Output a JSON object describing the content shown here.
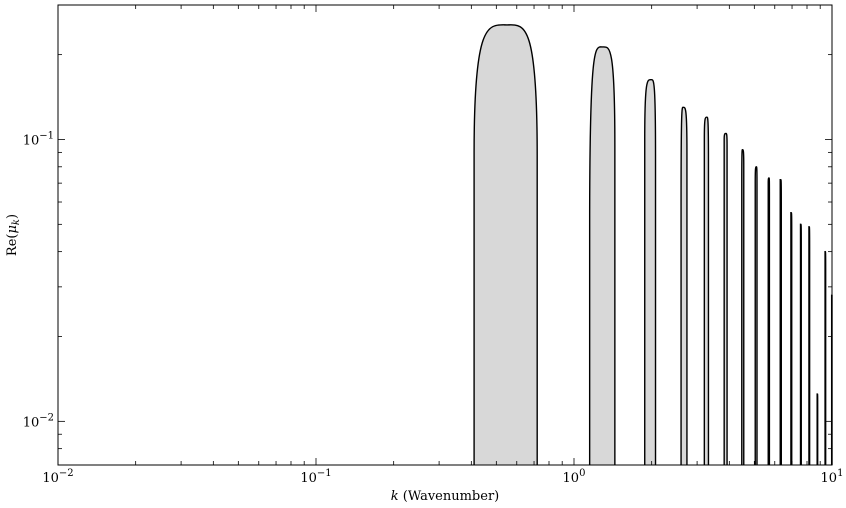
{
  "chart_data": {
    "type": "area",
    "title": "",
    "xlabel": "k (Wavenumber)",
    "xlabel_var": "k",
    "xlabel_rest": " (Wavenumber)",
    "ylabel": "Re(μk)",
    "ylabel_prefix": "Re(",
    "ylabel_var": "μ",
    "ylabel_sub": "k",
    "ylabel_suffix": ")",
    "xscale": "log",
    "yscale": "log",
    "xlim": [
      0.01,
      10
    ],
    "ylim": [
      0.007,
      0.3
    ],
    "grid": false,
    "legend": "none",
    "fill_color": "#d8d8d8",
    "line_color": "#000000",
    "x_ticks": [
      {
        "value": 0.01,
        "base": "10",
        "exp": "−2"
      },
      {
        "value": 0.1,
        "base": "10",
        "exp": "−1"
      },
      {
        "value": 1,
        "base": "10",
        "exp": "0"
      },
      {
        "value": 10,
        "base": "10",
        "exp": "1"
      }
    ],
    "y_ticks": [
      {
        "value": 0.01,
        "base": "10",
        "exp": "−2"
      },
      {
        "value": 0.1,
        "base": "10",
        "exp": "−1"
      }
    ],
    "lobes": [
      {
        "k_start": 0.41,
        "k_end": 0.72,
        "k_peak": 0.55,
        "peak": 0.255,
        "edge_left": 0.09,
        "edge_right": 0.088
      },
      {
        "k_start": 1.15,
        "k_end": 1.44,
        "k_peak": 1.29,
        "peak": 0.213,
        "edge_left": 0.05,
        "edge_right": 0.095
      },
      {
        "k_start": 1.88,
        "k_end": 2.07,
        "k_peak": 1.99,
        "peak": 0.163,
        "edge_left": 0.1,
        "edge_right": 0.088
      },
      {
        "k_start": 2.6,
        "k_end": 2.74,
        "k_peak": 2.65,
        "peak": 0.13,
        "edge_left": 0.058,
        "edge_right": 0.09
      },
      {
        "k_start": 3.2,
        "k_end": 3.32,
        "k_peak": 3.27,
        "peak": 0.12,
        "edge_left": 0.1,
        "edge_right": 0.085
      },
      {
        "k_start": 3.82,
        "k_end": 3.92,
        "k_peak": 3.88,
        "peak": 0.105,
        "edge_left": 0.1,
        "edge_right": 0.095
      },
      {
        "k_start": 4.47,
        "k_end": 4.55,
        "k_peak": 4.5,
        "peak": 0.092,
        "edge_left": 0.07,
        "edge_right": 0.08
      },
      {
        "k_start": 5.04,
        "k_end": 5.12,
        "k_peak": 5.09,
        "peak": 0.08,
        "edge_left": 0.07,
        "edge_right": 0.07
      },
      {
        "k_start": 5.66,
        "k_end": 5.72,
        "k_peak": 5.7,
        "peak": 0.073,
        "edge_left": 0.07,
        "edge_right": 0.065
      },
      {
        "k_start": 6.3,
        "k_end": 6.36,
        "k_peak": 6.33,
        "peak": 0.072,
        "edge_left": 0.072,
        "edge_right": 0.06
      },
      {
        "k_start": 6.93,
        "k_end": 6.98,
        "k_peak": 6.95,
        "peak": 0.055,
        "edge_left": 0.055,
        "edge_right": 0.048
      },
      {
        "k_start": 7.55,
        "k_end": 7.6,
        "k_peak": 7.57,
        "peak": 0.05,
        "edge_left": 0.05,
        "edge_right": 0.045
      },
      {
        "k_start": 8.14,
        "k_end": 8.19,
        "k_peak": 8.16,
        "peak": 0.049,
        "edge_left": 0.049,
        "edge_right": 0.04
      },
      {
        "k_start": 8.76,
        "k_end": 8.8,
        "k_peak": 8.78,
        "peak": 0.0125,
        "edge_left": 0.0125,
        "edge_right": 0.011
      },
      {
        "k_start": 9.4,
        "k_end": 9.45,
        "k_peak": 9.42,
        "peak": 0.04,
        "edge_left": 0.04,
        "edge_right": 0.035
      },
      {
        "k_start": 9.97,
        "k_end": 10.0,
        "k_peak": 10.0,
        "peak": 0.028,
        "edge_left": 0.028,
        "edge_right": 0.028
      }
    ]
  }
}
